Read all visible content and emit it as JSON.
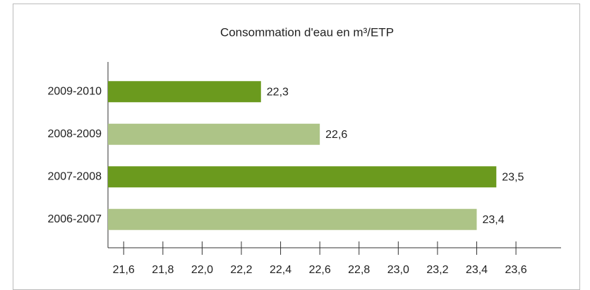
{
  "chart_data": {
    "type": "bar",
    "orientation": "horizontal",
    "title": "Consommation d'eau en m³/ETP",
    "categories": [
      "2009-2010",
      "2008-2009",
      "2007-2008",
      "2006-2007"
    ],
    "values": [
      22.3,
      22.6,
      23.5,
      23.4
    ],
    "value_labels": [
      "22,3",
      "22,6",
      "23,5",
      "23,4"
    ],
    "colors": [
      "#6b9a1e",
      "#adc487",
      "#6b9a1e",
      "#adc487"
    ],
    "xlim": [
      21.52,
      23.83
    ],
    "xticks": [
      {
        "value": 21.6,
        "label": "21,6"
      },
      {
        "value": 21.8,
        "label": "21,8"
      },
      {
        "value": 22.0,
        "label": "22,0"
      },
      {
        "value": 22.2,
        "label": "22,2"
      },
      {
        "value": 22.4,
        "label": "22,4"
      },
      {
        "value": 22.6,
        "label": "22,6"
      },
      {
        "value": 22.8,
        "label": "22,8"
      },
      {
        "value": 23.0,
        "label": "23,0"
      },
      {
        "value": 23.2,
        "label": "23,2"
      },
      {
        "value": 23.4,
        "label": "23,4"
      },
      {
        "value": 23.6,
        "label": "23,6"
      }
    ],
    "grid": false
  }
}
